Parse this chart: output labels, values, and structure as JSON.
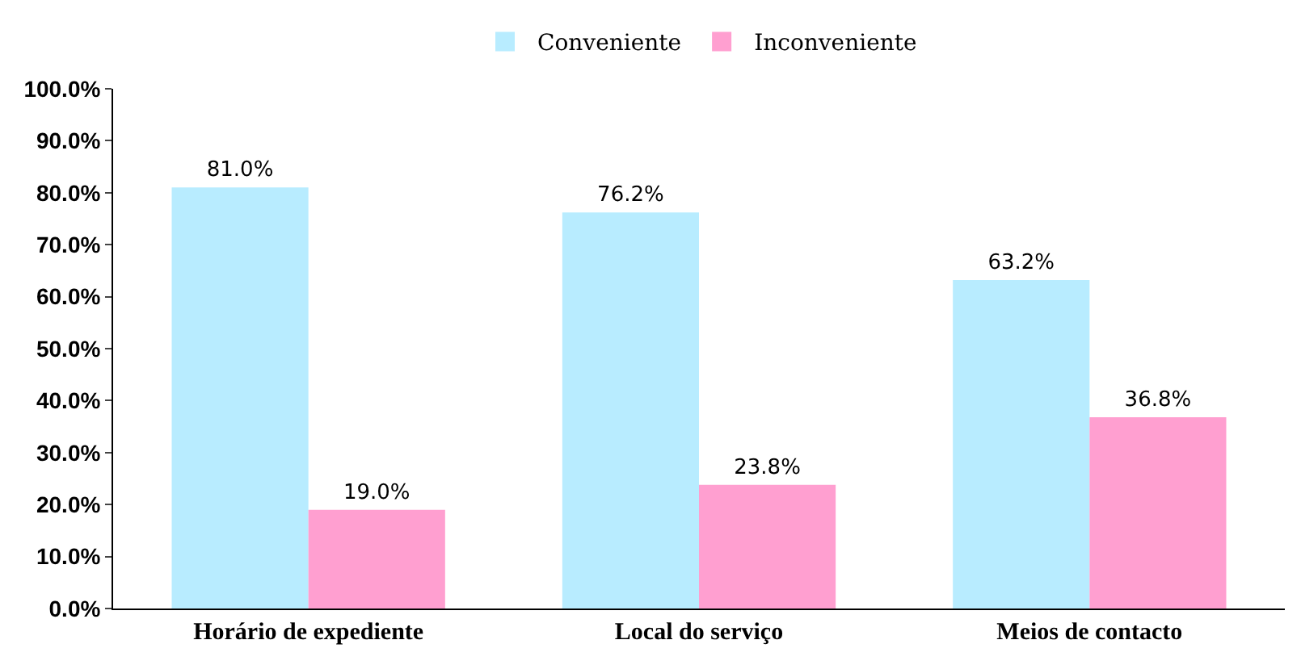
{
  "chart_data": {
    "type": "bar",
    "categories": [
      "Horário de expediente",
      "Local do serviço",
      "Meios de contacto"
    ],
    "series": [
      {
        "name": "Conveniente",
        "color": "#b8ecff",
        "values": [
          81.0,
          76.2,
          63.2
        ],
        "value_labels": [
          "81.0%",
          "76.2%",
          "63.2%"
        ]
      },
      {
        "name": "Inconveniente",
        "color": "#ff9fd0",
        "values": [
          19.0,
          23.8,
          36.8
        ],
        "value_labels": [
          "19.0%",
          "23.8%",
          "36.8%"
        ]
      }
    ],
    "ylim": [
      0,
      100
    ],
    "yticks": [
      {
        "value": 0,
        "label": "0.0%"
      },
      {
        "value": 10,
        "label": "10.0%"
      },
      {
        "value": 20,
        "label": "20.0%"
      },
      {
        "value": 30,
        "label": "30.0%"
      },
      {
        "value": 40,
        "label": "40.0%"
      },
      {
        "value": 50,
        "label": "50.0%"
      },
      {
        "value": 60,
        "label": "60.0%"
      },
      {
        "value": 70,
        "label": "70.0%"
      },
      {
        "value": 80,
        "label": "80.0%"
      },
      {
        "value": 90,
        "label": "90.0%"
      },
      {
        "value": 100,
        "label": "100.0%"
      }
    ],
    "grid": false,
    "legend": "top"
  }
}
